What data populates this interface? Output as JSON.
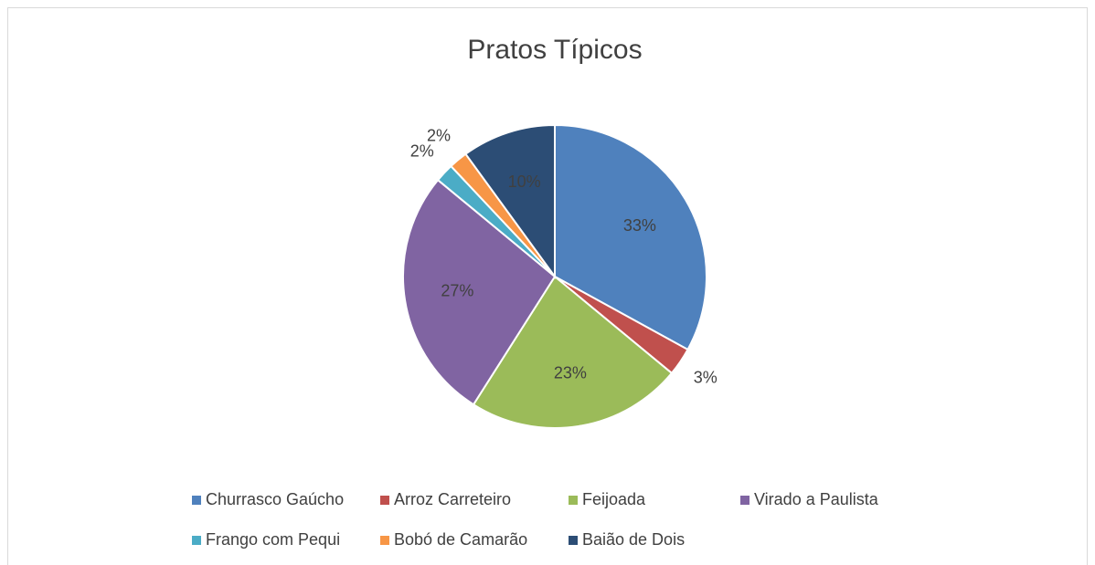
{
  "chart_data": {
    "type": "pie",
    "title": "Pratos Típicos",
    "categories": [
      "Churrasco Gaúcho",
      "Arroz Carreteiro",
      "Feijoada",
      "Virado a Paulista",
      "Frango com Pequi",
      "Bobó de Camarão",
      "Baião de Dois"
    ],
    "values": [
      33,
      3,
      23,
      27,
      2,
      2,
      10
    ],
    "value_labels": [
      "33%",
      "3%",
      "23%",
      "27%",
      "2%",
      "2%",
      "10%"
    ],
    "colors": [
      "#4f81bd",
      "#c0504d",
      "#9bbb59",
      "#8064a2",
      "#4bacc6",
      "#f79646",
      "#2c4d75"
    ],
    "legend": "bottom"
  }
}
